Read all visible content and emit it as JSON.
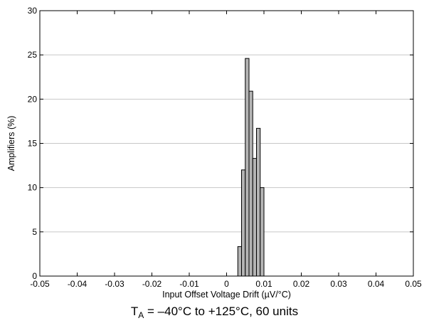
{
  "chart_data": {
    "type": "bar",
    "title": "",
    "xlabel": "Input Offset Voltage Drift (µV/°C)",
    "ylabel": "Amplifiers (%)",
    "xlim": [
      -0.05,
      0.05
    ],
    "ylim": [
      0,
      30
    ],
    "x_ticks": [
      "-0.05",
      "-0.04",
      "-0.03",
      "-0.02",
      "-0.01",
      "0",
      "0.01",
      "0.02",
      "0.03",
      "0.04",
      "0.05"
    ],
    "y_ticks": [
      "0",
      "5",
      "10",
      "15",
      "20",
      "25",
      "30"
    ],
    "grid": {
      "horizontal": true,
      "vertical": false
    },
    "bin_width": 0.001,
    "bins": [
      {
        "x_start": 0.003,
        "value": 3.33
      },
      {
        "x_start": 0.004,
        "value": 12.0
      },
      {
        "x_start": 0.005,
        "value": 24.6
      },
      {
        "x_start": 0.006,
        "value": 20.9
      },
      {
        "x_start": 0.007,
        "value": 13.3
      },
      {
        "x_start": 0.008,
        "value": 16.7
      },
      {
        "x_start": 0.009,
        "value": 10.0
      }
    ],
    "bar_color": "#b4b4b4",
    "bar_edge_color": "#000000"
  },
  "caption": {
    "t_main": "T",
    "t_sub": "A",
    "rest": " = –40°C to +125°C, 60 units"
  }
}
